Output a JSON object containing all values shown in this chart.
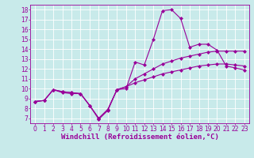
{
  "xlabel": "Windchill (Refroidissement éolien,°C)",
  "bg_color": "#c8eaea",
  "grid_color": "#b8d8d8",
  "line_color": "#990099",
  "xlim": [
    -0.5,
    23.5
  ],
  "ylim": [
    6.5,
    18.5
  ],
  "xticks": [
    0,
    1,
    2,
    3,
    4,
    5,
    6,
    7,
    8,
    9,
    10,
    11,
    12,
    13,
    14,
    15,
    16,
    17,
    18,
    19,
    20,
    21,
    22,
    23
  ],
  "yticks": [
    7,
    8,
    9,
    10,
    11,
    12,
    13,
    14,
    15,
    16,
    17,
    18
  ],
  "line1_x": [
    0,
    1,
    2,
    3,
    4,
    5,
    6,
    7,
    8,
    9,
    10,
    11,
    12,
    13,
    14,
    15,
    16,
    17,
    18,
    19,
    20,
    21,
    22,
    23
  ],
  "line1_y": [
    8.7,
    8.8,
    9.9,
    9.6,
    9.5,
    9.5,
    8.3,
    6.9,
    7.8,
    9.9,
    10.0,
    12.7,
    12.4,
    15.0,
    17.9,
    18.0,
    17.1,
    14.2,
    14.5,
    14.5,
    13.9,
    12.3,
    12.1,
    11.9
  ],
  "line2_x": [
    0,
    1,
    2,
    3,
    4,
    5,
    6,
    7,
    8,
    9,
    10,
    11,
    12,
    13,
    14,
    15,
    16,
    17,
    18,
    19,
    20,
    21,
    22,
    23
  ],
  "line2_y": [
    8.7,
    8.8,
    9.9,
    9.7,
    9.6,
    9.5,
    8.3,
    7.0,
    7.9,
    9.9,
    10.2,
    11.0,
    11.5,
    12.0,
    12.5,
    12.8,
    13.1,
    13.3,
    13.5,
    13.7,
    13.8,
    13.8,
    13.8,
    13.8
  ],
  "line3_x": [
    0,
    1,
    2,
    3,
    4,
    5,
    6,
    7,
    8,
    9,
    10,
    11,
    12,
    13,
    14,
    15,
    16,
    17,
    18,
    19,
    20,
    21,
    22,
    23
  ],
  "line3_y": [
    8.7,
    8.8,
    9.9,
    9.7,
    9.6,
    9.5,
    8.3,
    7.0,
    7.9,
    9.9,
    10.2,
    10.6,
    10.9,
    11.2,
    11.5,
    11.7,
    11.9,
    12.1,
    12.3,
    12.4,
    12.5,
    12.5,
    12.4,
    12.3
  ],
  "marker": "D",
  "markersize": 2.0,
  "linewidth": 0.8,
  "tick_fontsize": 5.5,
  "xlabel_fontsize": 6.5
}
